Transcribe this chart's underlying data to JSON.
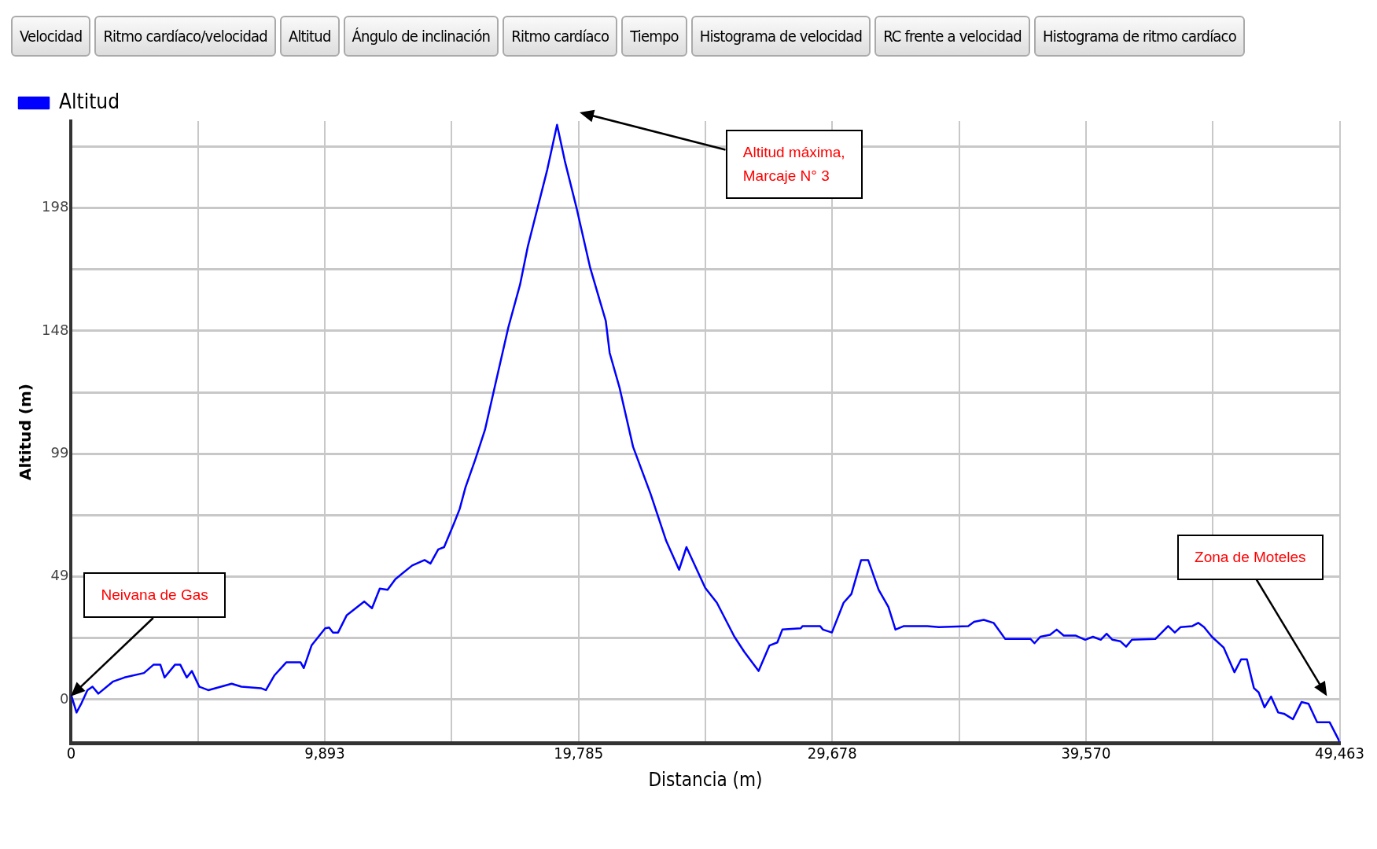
{
  "chart_data": {
    "type": "line",
    "xlabel": "Distancia (m)",
    "ylabel": "Altitud (m)",
    "legend": "top left",
    "grid": true,
    "marker": "none",
    "line_style": "solid",
    "xlim": [
      0,
      49463
    ],
    "ylim": [
      -17.5,
      233
    ],
    "xticks": [
      {
        "value": 0,
        "label": "0"
      },
      {
        "value": 4946.5,
        "label": null
      },
      {
        "value": 9893,
        "label": "9,893"
      },
      {
        "value": 14839,
        "label": null
      },
      {
        "value": 19785,
        "label": "19,785"
      },
      {
        "value": 24732,
        "label": null
      },
      {
        "value": 29678,
        "label": "29,678"
      },
      {
        "value": 34624,
        "label": null
      },
      {
        "value": 39570,
        "label": "39,570"
      },
      {
        "value": 44517,
        "label": null
      },
      {
        "value": 49463,
        "label": "49,463"
      }
    ],
    "yticks": [
      {
        "value": 0,
        "label": "0"
      },
      {
        "value": 24.75,
        "label": null
      },
      {
        "value": 49.5,
        "label": "49"
      },
      {
        "value": 74.25,
        "label": null
      },
      {
        "value": 99,
        "label": "99"
      },
      {
        "value": 123.75,
        "label": null
      },
      {
        "value": 148.5,
        "label": "148"
      },
      {
        "value": 173.25,
        "label": null
      },
      {
        "value": 198,
        "label": "198"
      },
      {
        "value": 222.75,
        "label": null
      }
    ],
    "annotations": [
      "Velocidad",
      "Ritmo cardíaco/velocidad",
      "Altitud",
      "Ángulo de inclinación",
      "Ritmo cardíaco",
      "Tiempo",
      "Histograma de velocidad",
      "RC frente a velocidad",
      "Histograma de ritmo cardíaco",
      "Neivana de Gas",
      "Altitud máxima,\nMarcaje N° 3",
      "Zona de Moteles"
    ],
    "series": [
      {
        "name": "Altitud",
        "color": "#0000ff",
        "x": [
          0,
          213,
          410,
          638,
          836,
          1064,
          1626,
          2082,
          2842,
          3222,
          3480,
          3647,
          4058,
          4255,
          4513,
          4711,
          4999,
          5349,
          6261,
          6641,
          7401,
          7598,
          7933,
          8389,
          8951,
          9073,
          9377,
          9909,
          10061,
          10213,
          10411,
          10745,
          11429,
          11733,
          12037,
          12341,
          12645,
          13299,
          13785,
          14013,
          14317,
          14545,
          14925,
          15153,
          15377,
          15757,
          16137,
          16517,
          17049,
          17505,
          17809,
          18189,
          18569,
          18949,
          19253,
          19709,
          20241,
          20849,
          21001,
          21381,
          21913,
          22597,
          23205,
          23707,
          23995,
          24725,
          25181,
          25865,
          26245,
          26807,
          27233,
          27537,
          27734,
          28449,
          28525,
          29209,
          29315,
          29665,
          30121,
          30425,
          30805,
          31079,
          31489,
          31869,
          32143,
          32472,
          33384,
          33840,
          34980,
          35208,
          35588,
          35968,
          36424,
          37412,
          37564,
          37792,
          38172,
          38430,
          38704,
          39160,
          39540,
          39844,
          40148,
          40376,
          40604,
          40908,
          41136,
          41364,
          42276,
          42778,
          43036,
          43264,
          43720,
          43948,
          44176,
          44480,
          44936,
          45361,
          45620,
          45848,
          46121,
          46304,
          46532,
          46790,
          47064,
          47292,
          47641,
          47976,
          48249,
          48584,
          49070,
          49463
        ],
        "values": [
          2.1,
          -5.2,
          -1.4,
          3.8,
          5.2,
          2.4,
          7.2,
          8.9,
          10.7,
          14.1,
          14.1,
          8.9,
          14.1,
          14.1,
          8.9,
          11.5,
          5.2,
          3.8,
          6.4,
          5.2,
          4.6,
          3.8,
          9.8,
          15,
          15,
          12.7,
          21.8,
          28.7,
          29,
          27,
          27,
          33.9,
          39.5,
          36.8,
          44.7,
          44.2,
          48.5,
          54,
          56.2,
          54.8,
          60.5,
          61.4,
          70.8,
          76.8,
          85.4,
          96.6,
          108.6,
          125.8,
          149.9,
          167.1,
          182.5,
          198,
          213.5,
          231.5,
          216.9,
          198,
          173.9,
          152.5,
          139.6,
          125.8,
          101.8,
          82.8,
          63.9,
          52.3,
          61.4,
          45,
          39,
          25.3,
          19.3,
          11.5,
          21.8,
          23,
          28.2,
          28.7,
          29.6,
          29.6,
          28.2,
          27,
          39,
          42.5,
          56.2,
          56.2,
          44.2,
          37.3,
          28.2,
          29.6,
          29.6,
          29.2,
          29.6,
          31.3,
          32.1,
          30.9,
          24.4,
          24.4,
          22.7,
          25.3,
          26.1,
          28.2,
          25.8,
          25.8,
          24.1,
          25.3,
          24.1,
          26.5,
          24.1,
          23.5,
          21.3,
          24.1,
          24.4,
          29.6,
          27,
          29.2,
          29.6,
          30.9,
          29.2,
          25.3,
          21,
          11,
          16.2,
          16.2,
          4.6,
          2.9,
          -3.1,
          1.2,
          -5.2,
          -5.7,
          -7.9,
          -1,
          -1.7,
          -9.1,
          -9.1,
          -17
        ]
      }
    ]
  }
}
